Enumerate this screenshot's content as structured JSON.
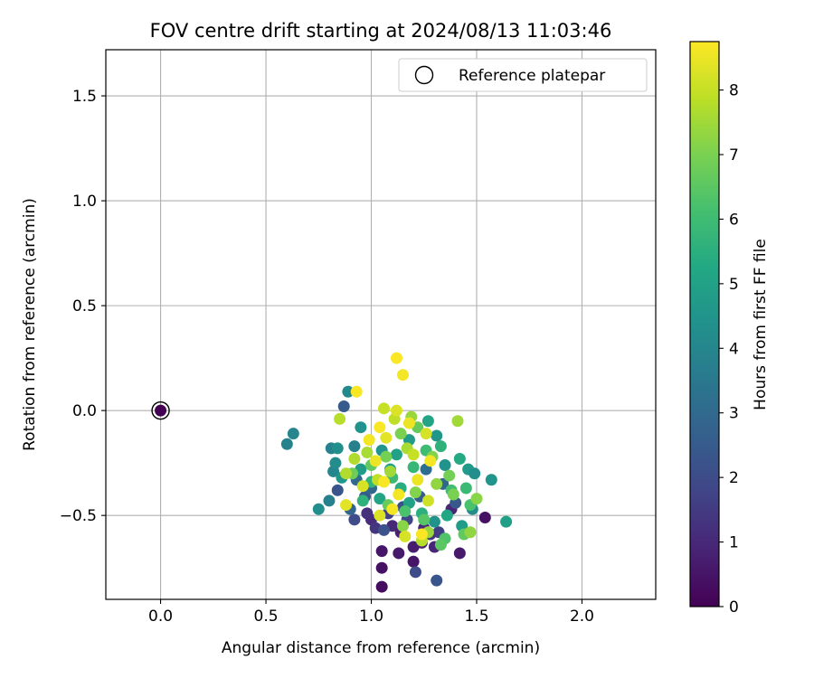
{
  "chart_data": {
    "type": "scatter",
    "title": "FOV centre drift starting at 2024/08/13 11:03:46",
    "xlabel": "Angular distance from reference (arcmin)",
    "ylabel": "Rotation from reference (arcmin)",
    "xlim": [
      -0.26,
      2.35
    ],
    "ylim": [
      -0.9,
      1.72
    ],
    "xticks": [
      0.0,
      0.5,
      1.0,
      1.5,
      2.0
    ],
    "xtick_labels": [
      "0.0",
      "0.5",
      "1.0",
      "1.5",
      "2.0"
    ],
    "yticks": [
      -0.5,
      0.0,
      0.5,
      1.0,
      1.5
    ],
    "ytick_labels": [
      "−0.5",
      "0.0",
      "0.5",
      "1.0",
      "1.5"
    ],
    "grid": true,
    "legend": {
      "position": "top-right",
      "entries": [
        "Reference platepar"
      ]
    },
    "colorbar": {
      "label": "Hours from first FF file",
      "range": [
        0,
        8.75
      ],
      "ticks": [
        0,
        1,
        2,
        3,
        4,
        5,
        6,
        7,
        8
      ],
      "tick_labels": [
        "0",
        "1",
        "2",
        "3",
        "4",
        "5",
        "6",
        "7",
        "8"
      ],
      "colormap": "viridis"
    },
    "reference_point": {
      "x": 0.0,
      "y": 0.0,
      "hours": 0.0
    },
    "series": [
      {
        "points": [
          {
            "x": 1.05,
            "y": -0.84,
            "h": 0.3
          },
          {
            "x": 1.05,
            "y": -0.75,
            "h": 0.4
          },
          {
            "x": 1.05,
            "y": -0.67,
            "h": 0.5
          },
          {
            "x": 1.13,
            "y": -0.68,
            "h": 0.6
          },
          {
            "x": 1.2,
            "y": -0.72,
            "h": 0.5
          },
          {
            "x": 1.2,
            "y": -0.65,
            "h": 0.7
          },
          {
            "x": 1.24,
            "y": -0.63,
            "h": 0.8
          },
          {
            "x": 1.3,
            "y": -0.65,
            "h": 0.9
          },
          {
            "x": 1.42,
            "y": -0.68,
            "h": 0.6
          },
          {
            "x": 1.54,
            "y": -0.51,
            "h": 0.4
          },
          {
            "x": 1.38,
            "y": -0.47,
            "h": 0.9
          },
          {
            "x": 1.1,
            "y": -0.55,
            "h": 1.0
          },
          {
            "x": 1.14,
            "y": -0.58,
            "h": 0.8
          },
          {
            "x": 1.0,
            "y": -0.52,
            "h": 1.1
          },
          {
            "x": 0.98,
            "y": -0.49,
            "h": 1.2
          },
          {
            "x": 1.02,
            "y": -0.56,
            "h": 1.3
          },
          {
            "x": 1.25,
            "y": -0.56,
            "h": 1.0
          },
          {
            "x": 1.21,
            "y": -0.77,
            "h": 2.0
          },
          {
            "x": 1.31,
            "y": -0.81,
            "h": 2.3
          },
          {
            "x": 1.06,
            "y": -0.57,
            "h": 2.2
          },
          {
            "x": 1.17,
            "y": -0.52,
            "h": 1.8
          },
          {
            "x": 1.32,
            "y": -0.58,
            "h": 1.6
          },
          {
            "x": 1.28,
            "y": -0.59,
            "h": 1.4
          },
          {
            "x": 1.08,
            "y": -0.49,
            "h": 1.7
          },
          {
            "x": 0.84,
            "y": -0.38,
            "h": 2.3
          },
          {
            "x": 0.87,
            "y": 0.02,
            "h": 2.5
          },
          {
            "x": 0.92,
            "y": -0.52,
            "h": 2.0
          },
          {
            "x": 0.9,
            "y": -0.47,
            "h": 2.8
          },
          {
            "x": 0.97,
            "y": -0.41,
            "h": 2.5
          },
          {
            "x": 0.93,
            "y": -0.33,
            "h": 3.0
          },
          {
            "x": 1.0,
            "y": -0.37,
            "h": 2.9
          },
          {
            "x": 1.15,
            "y": -0.46,
            "h": 2.1
          },
          {
            "x": 1.23,
            "y": -0.41,
            "h": 2.6
          },
          {
            "x": 1.34,
            "y": -0.35,
            "h": 2.9
          },
          {
            "x": 1.26,
            "y": -0.28,
            "h": 3.1
          },
          {
            "x": 1.4,
            "y": -0.44,
            "h": 2.4
          },
          {
            "x": 0.6,
            "y": -0.16,
            "h": 3.9
          },
          {
            "x": 0.63,
            "y": -0.11,
            "h": 4.0
          },
          {
            "x": 0.75,
            "y": -0.47,
            "h": 4.3
          },
          {
            "x": 0.8,
            "y": -0.43,
            "h": 3.8
          },
          {
            "x": 0.82,
            "y": -0.29,
            "h": 4.0
          },
          {
            "x": 0.83,
            "y": -0.25,
            "h": 4.2
          },
          {
            "x": 0.81,
            "y": -0.18,
            "h": 3.9
          },
          {
            "x": 0.84,
            "y": -0.18,
            "h": 4.3
          },
          {
            "x": 0.89,
            "y": 0.09,
            "h": 4.1
          },
          {
            "x": 0.92,
            "y": -0.17,
            "h": 3.8
          },
          {
            "x": 0.95,
            "y": -0.08,
            "h": 4.4
          },
          {
            "x": 0.86,
            "y": -0.32,
            "h": 4.6
          },
          {
            "x": 0.95,
            "y": -0.28,
            "h": 4.8
          },
          {
            "x": 1.05,
            "y": -0.19,
            "h": 4.5
          },
          {
            "x": 1.09,
            "y": -0.28,
            "h": 4.9
          },
          {
            "x": 1.12,
            "y": -0.21,
            "h": 5.0
          },
          {
            "x": 1.18,
            "y": -0.14,
            "h": 4.7
          },
          {
            "x": 1.27,
            "y": -0.05,
            "h": 5.1
          },
          {
            "x": 1.31,
            "y": -0.12,
            "h": 4.6
          },
          {
            "x": 1.35,
            "y": -0.26,
            "h": 4.4
          },
          {
            "x": 1.42,
            "y": -0.23,
            "h": 5.3
          },
          {
            "x": 1.46,
            "y": -0.28,
            "h": 4.7
          },
          {
            "x": 1.49,
            "y": -0.3,
            "h": 4.3
          },
          {
            "x": 1.57,
            "y": -0.33,
            "h": 4.5
          },
          {
            "x": 1.64,
            "y": -0.53,
            "h": 4.9
          },
          {
            "x": 1.48,
            "y": -0.47,
            "h": 4.2
          },
          {
            "x": 1.43,
            "y": -0.55,
            "h": 4.8
          },
          {
            "x": 1.36,
            "y": -0.5,
            "h": 5.2
          },
          {
            "x": 1.3,
            "y": -0.53,
            "h": 4.4
          },
          {
            "x": 1.24,
            "y": -0.49,
            "h": 5.5
          },
          {
            "x": 1.18,
            "y": -0.44,
            "h": 5.0
          },
          {
            "x": 1.14,
            "y": -0.37,
            "h": 5.4
          },
          {
            "x": 1.04,
            "y": -0.42,
            "h": 5.1
          },
          {
            "x": 0.96,
            "y": -0.43,
            "h": 5.6
          },
          {
            "x": 1.0,
            "y": -0.34,
            "h": 5.7
          },
          {
            "x": 1.1,
            "y": -0.32,
            "h": 5.9
          },
          {
            "x": 1.2,
            "y": -0.27,
            "h": 5.8
          },
          {
            "x": 1.26,
            "y": -0.19,
            "h": 6.0
          },
          {
            "x": 1.33,
            "y": -0.17,
            "h": 5.6
          },
          {
            "x": 1.38,
            "y": -0.38,
            "h": 6.1
          },
          {
            "x": 1.45,
            "y": -0.37,
            "h": 5.9
          },
          {
            "x": 1.47,
            "y": -0.45,
            "h": 6.2
          },
          {
            "x": 1.35,
            "y": -0.61,
            "h": 6.3
          },
          {
            "x": 1.33,
            "y": -0.64,
            "h": 6.5
          },
          {
            "x": 1.44,
            "y": -0.59,
            "h": 6.6
          },
          {
            "x": 1.25,
            "y": -0.52,
            "h": 6.4
          },
          {
            "x": 1.16,
            "y": -0.48,
            "h": 6.2
          },
          {
            "x": 1.08,
            "y": -0.45,
            "h": 6.7
          },
          {
            "x": 0.91,
            "y": -0.3,
            "h": 6.8
          },
          {
            "x": 1.0,
            "y": -0.26,
            "h": 6.6
          },
          {
            "x": 1.07,
            "y": -0.22,
            "h": 6.9
          },
          {
            "x": 1.14,
            "y": -0.11,
            "h": 7.0
          },
          {
            "x": 1.22,
            "y": -0.08,
            "h": 6.7
          },
          {
            "x": 1.29,
            "y": -0.22,
            "h": 7.1
          },
          {
            "x": 1.37,
            "y": -0.31,
            "h": 6.9
          },
          {
            "x": 1.5,
            "y": -0.42,
            "h": 7.2
          },
          {
            "x": 1.39,
            "y": -0.4,
            "h": 7.0
          },
          {
            "x": 1.31,
            "y": -0.35,
            "h": 7.3
          },
          {
            "x": 1.21,
            "y": -0.39,
            "h": 7.1
          },
          {
            "x": 1.15,
            "y": -0.55,
            "h": 7.2
          },
          {
            "x": 1.27,
            "y": -0.58,
            "h": 7.4
          },
          {
            "x": 1.47,
            "y": -0.58,
            "h": 7.3
          },
          {
            "x": 1.41,
            "y": -0.05,
            "h": 7.5
          },
          {
            "x": 1.19,
            "y": -0.03,
            "h": 7.4
          },
          {
            "x": 1.17,
            "y": -0.18,
            "h": 7.6
          },
          {
            "x": 1.09,
            "y": -0.29,
            "h": 7.5
          },
          {
            "x": 0.98,
            "y": -0.2,
            "h": 7.6
          },
          {
            "x": 0.88,
            "y": -0.3,
            "h": 7.7
          },
          {
            "x": 0.85,
            "y": -0.04,
            "h": 7.8
          },
          {
            "x": 0.92,
            "y": -0.23,
            "h": 7.7
          },
          {
            "x": 1.03,
            "y": -0.33,
            "h": 7.9
          },
          {
            "x": 1.06,
            "y": 0.01,
            "h": 8.0
          },
          {
            "x": 1.11,
            "y": -0.04,
            "h": 7.9
          },
          {
            "x": 1.2,
            "y": -0.21,
            "h": 8.0
          },
          {
            "x": 1.27,
            "y": -0.43,
            "h": 8.1
          },
          {
            "x": 1.24,
            "y": -0.62,
            "h": 7.8
          },
          {
            "x": 1.16,
            "y": -0.6,
            "h": 8.2
          },
          {
            "x": 1.04,
            "y": -0.5,
            "h": 8.3
          },
          {
            "x": 0.88,
            "y": -0.45,
            "h": 8.4
          },
          {
            "x": 0.96,
            "y": -0.36,
            "h": 8.2
          },
          {
            "x": 1.02,
            "y": -0.24,
            "h": 8.5
          },
          {
            "x": 1.07,
            "y": -0.13,
            "h": 8.4
          },
          {
            "x": 1.12,
            "y": 0.0,
            "h": 8.3
          },
          {
            "x": 1.18,
            "y": -0.06,
            "h": 8.5
          },
          {
            "x": 1.26,
            "y": -0.11,
            "h": 8.2
          },
          {
            "x": 1.28,
            "y": -0.24,
            "h": 8.6
          },
          {
            "x": 1.22,
            "y": -0.33,
            "h": 8.5
          },
          {
            "x": 1.13,
            "y": -0.4,
            "h": 8.6
          },
          {
            "x": 1.06,
            "y": -0.34,
            "h": 8.7
          },
          {
            "x": 0.99,
            "y": -0.14,
            "h": 8.6
          },
          {
            "x": 0.93,
            "y": 0.09,
            "h": 8.7
          },
          {
            "x": 1.12,
            "y": 0.25,
            "h": 8.7
          },
          {
            "x": 1.15,
            "y": 0.17,
            "h": 8.6
          },
          {
            "x": 1.24,
            "y": -0.59,
            "h": 8.7
          },
          {
            "x": 1.1,
            "y": -0.47,
            "h": 8.6
          },
          {
            "x": 1.04,
            "y": -0.08,
            "h": 8.7
          }
        ]
      }
    ]
  }
}
